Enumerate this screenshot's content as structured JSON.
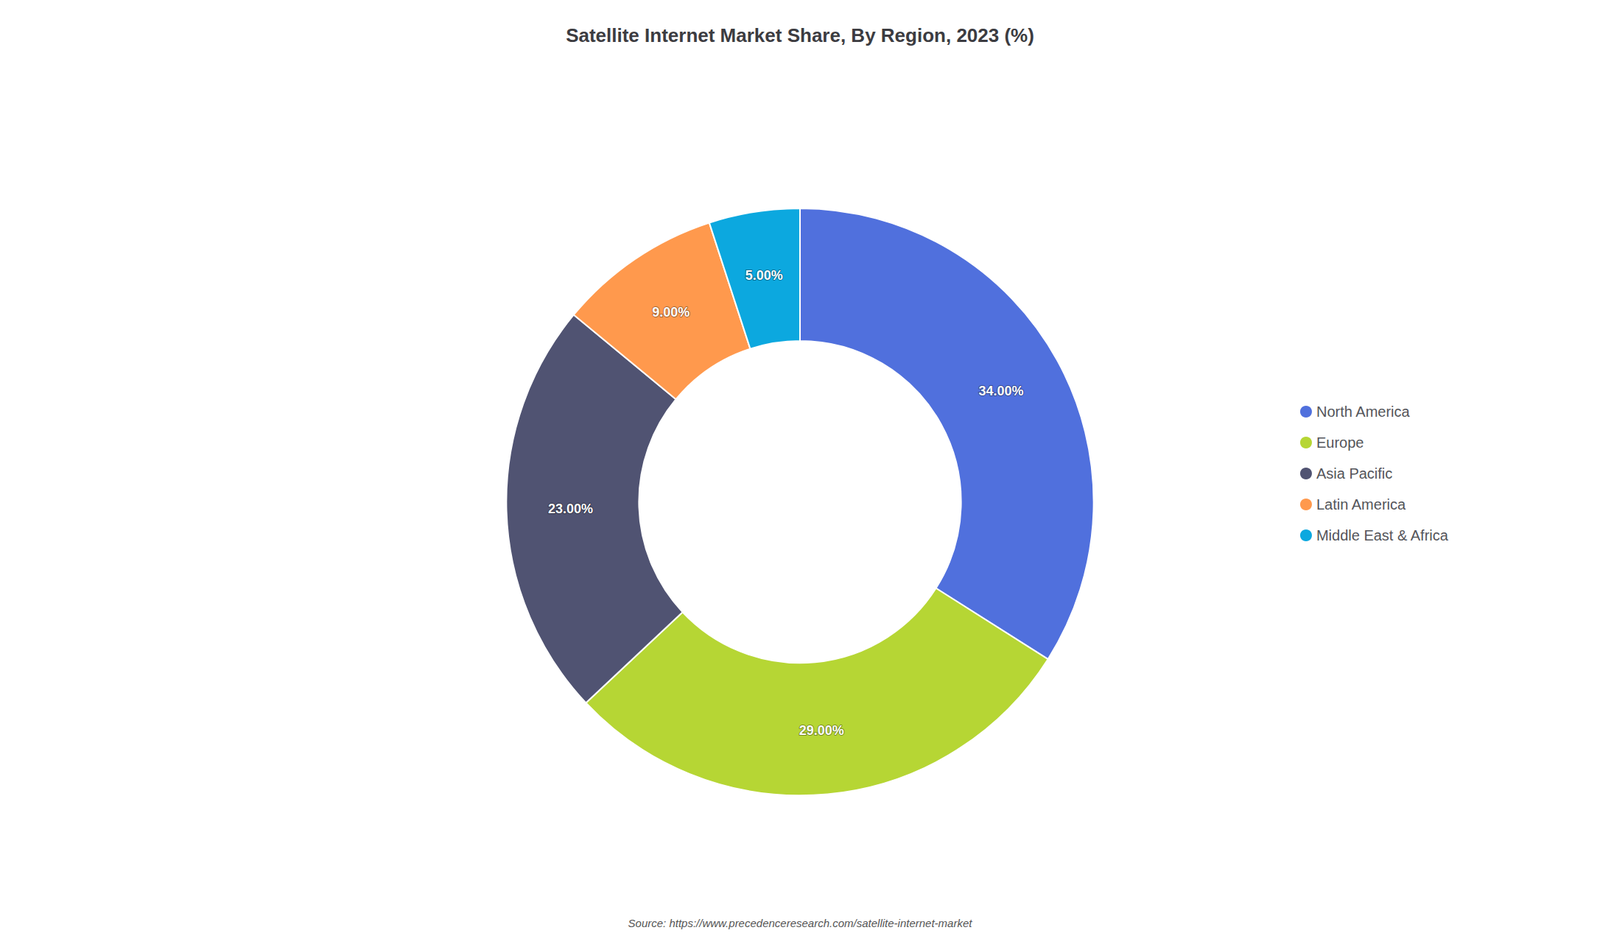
{
  "chart_data": {
    "type": "donut",
    "title": "Satellite Internet Market Share, By Region, 2023 (%)",
    "categories": [
      "North America",
      "Europe",
      "Asia Pacific",
      "Latin America",
      "Middle East & Africa"
    ],
    "values": [
      34,
      29,
      23,
      9,
      5
    ],
    "value_labels": [
      "34.00%",
      "29.00%",
      "23.00%",
      "9.00%",
      "5.00%"
    ],
    "data_labels": true,
    "legend": "right",
    "annotations": [
      "Source: https://www.precedenceresearch.com/satellite-internet-market"
    ]
  }
}
